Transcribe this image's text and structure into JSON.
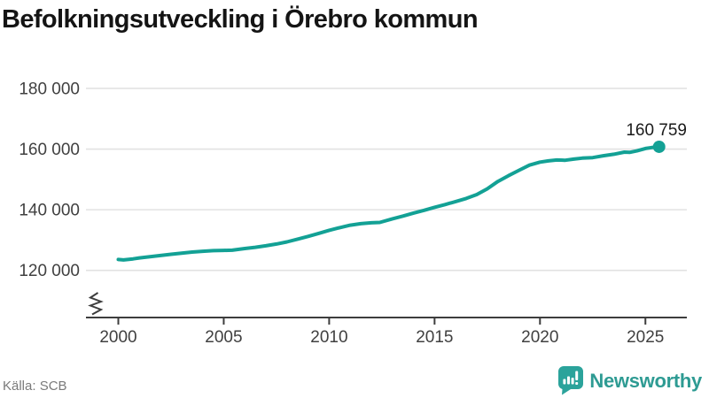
{
  "header": {
    "title": "Befolkningsutveckling i Örebro kommun"
  },
  "footer": {
    "source": "Källa: SCB",
    "brand": "Newsworthy",
    "brand_icon": "newsworthy-chart-bubble-icon"
  },
  "colors": {
    "line": "#13A195",
    "marker": "#13A195",
    "grid": "#E2E2E2",
    "axis": "#3D3D3D",
    "tick_label": "#404040",
    "title": "#141414",
    "annotation": "#1A1A1A",
    "source_text": "#7A7A7A",
    "logo_icon": "#2BA39B",
    "logo_text": "#2E9B93",
    "background": "#FFFFFF"
  },
  "chart_data": {
    "type": "line",
    "title": "Befolkningsutveckling i Örebro kommun",
    "xlabel": "",
    "ylabel": "",
    "source": "SCB",
    "grid": "horizontal",
    "axis_break": true,
    "legend": "none",
    "xlim": [
      1998.9,
      2027
    ],
    "ylim": [
      120000,
      180000
    ],
    "x_ticks": [
      {
        "value": 2000,
        "label": "2000"
      },
      {
        "value": 2005,
        "label": "2005"
      },
      {
        "value": 2010,
        "label": "2010"
      },
      {
        "value": 2015,
        "label": "2015"
      },
      {
        "value": 2020,
        "label": "2020"
      },
      {
        "value": 2025,
        "label": "2025"
      }
    ],
    "y_ticks": [
      {
        "value": 180000,
        "label": "180 000"
      },
      {
        "value": 160000,
        "label": "160 000"
      },
      {
        "value": 140000,
        "label": "140 000"
      },
      {
        "value": 120000,
        "label": "120 000"
      }
    ],
    "end_label": "160 759",
    "end_point": {
      "x": 2025.65,
      "y": 160759
    },
    "series": [
      {
        "name": "Befolkning",
        "points": [
          [
            2000.0,
            123600
          ],
          [
            2000.25,
            123450
          ],
          [
            2000.7,
            123800
          ],
          [
            2001,
            124100
          ],
          [
            2001.5,
            124500
          ],
          [
            2002,
            124900
          ],
          [
            2002.5,
            125300
          ],
          [
            2003,
            125700
          ],
          [
            2003.5,
            126050
          ],
          [
            2004,
            126300
          ],
          [
            2004.5,
            126500
          ],
          [
            2005,
            126600
          ],
          [
            2005.4,
            126650
          ],
          [
            2006,
            127200
          ],
          [
            2006.5,
            127600
          ],
          [
            2007,
            128100
          ],
          [
            2007.5,
            128700
          ],
          [
            2008,
            129400
          ],
          [
            2008.5,
            130300
          ],
          [
            2009,
            131200
          ],
          [
            2009.5,
            132200
          ],
          [
            2010,
            133200
          ],
          [
            2010.5,
            134100
          ],
          [
            2011,
            134900
          ],
          [
            2011.5,
            135400
          ],
          [
            2012,
            135700
          ],
          [
            2012.4,
            135800
          ],
          [
            2013,
            137000
          ],
          [
            2013.5,
            137900
          ],
          [
            2014,
            138900
          ],
          [
            2014.5,
            139800
          ],
          [
            2015,
            140800
          ],
          [
            2015.5,
            141700
          ],
          [
            2016,
            142700
          ],
          [
            2016.5,
            143700
          ],
          [
            2017,
            145000
          ],
          [
            2017.5,
            146900
          ],
          [
            2018,
            149300
          ],
          [
            2018.5,
            151200
          ],
          [
            2019,
            153000
          ],
          [
            2019.5,
            154700
          ],
          [
            2020,
            155700
          ],
          [
            2020.4,
            156100
          ],
          [
            2020.8,
            156400
          ],
          [
            2021.2,
            156300
          ],
          [
            2021.6,
            156700
          ],
          [
            2022,
            157000
          ],
          [
            2022.5,
            157200
          ],
          [
            2023,
            157800
          ],
          [
            2023.5,
            158300
          ],
          [
            2024,
            159000
          ],
          [
            2024.25,
            158900
          ],
          [
            2024.6,
            159400
          ],
          [
            2025,
            160200
          ],
          [
            2025.3,
            160500
          ],
          [
            2025.65,
            160759
          ]
        ]
      }
    ]
  }
}
